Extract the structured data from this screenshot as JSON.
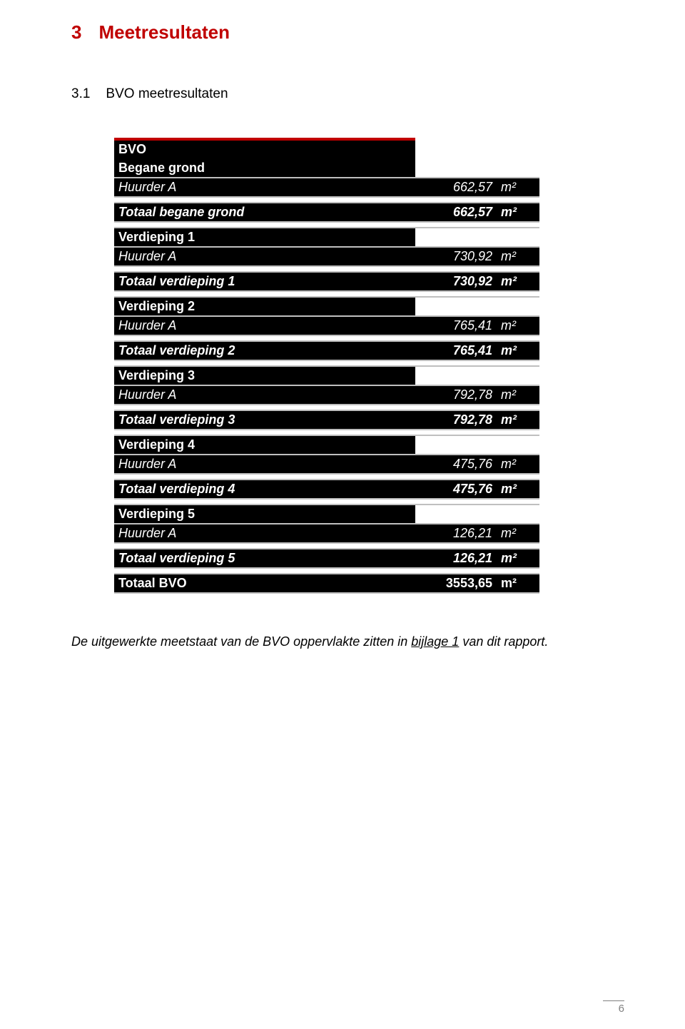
{
  "heading1": {
    "num": "3",
    "text": "Meetresultaten"
  },
  "heading2": {
    "num": "3.1",
    "text": "BVO meetresultaten"
  },
  "unit": "m²",
  "table": {
    "title": "BVO",
    "sections": [
      {
        "header": "Begane grond",
        "detail_label": "Huurder A",
        "detail_value": "662,57",
        "total_label": "Totaal begane grond",
        "total_value": "662,57"
      },
      {
        "header": "Verdieping 1",
        "detail_label": "Huurder A",
        "detail_value": "730,92",
        "total_label": "Totaal verdieping 1",
        "total_value": "730,92"
      },
      {
        "header": "Verdieping 2",
        "detail_label": "Huurder A",
        "detail_value": "765,41",
        "total_label": "Totaal verdieping 2",
        "total_value": "765,41"
      },
      {
        "header": "Verdieping 3",
        "detail_label": "Huurder A",
        "detail_value": "792,78",
        "total_label": "Totaal verdieping 3",
        "total_value": "792,78"
      },
      {
        "header": "Verdieping 4",
        "detail_label": "Huurder A",
        "detail_value": "475,76",
        "total_label": "Totaal verdieping 4",
        "total_value": "475,76"
      },
      {
        "header": "Verdieping 5",
        "detail_label": "Huurder A",
        "detail_value": "126,21",
        "total_label": "Totaal verdieping 5",
        "total_value": "126,21"
      }
    ],
    "grand": {
      "label": "Totaal BVO",
      "value": "3553,65"
    }
  },
  "footnote": {
    "pre": "De uitgewerkte meetstaat van de BVO oppervlakte zitten in ",
    "link": "bijlage 1",
    "post": " van dit rapport."
  },
  "page_number": "6",
  "colors": {
    "accent": "#c00000",
    "black": "#000000",
    "grey_border": "#bfbfbf",
    "footer_grey": "#808080"
  }
}
